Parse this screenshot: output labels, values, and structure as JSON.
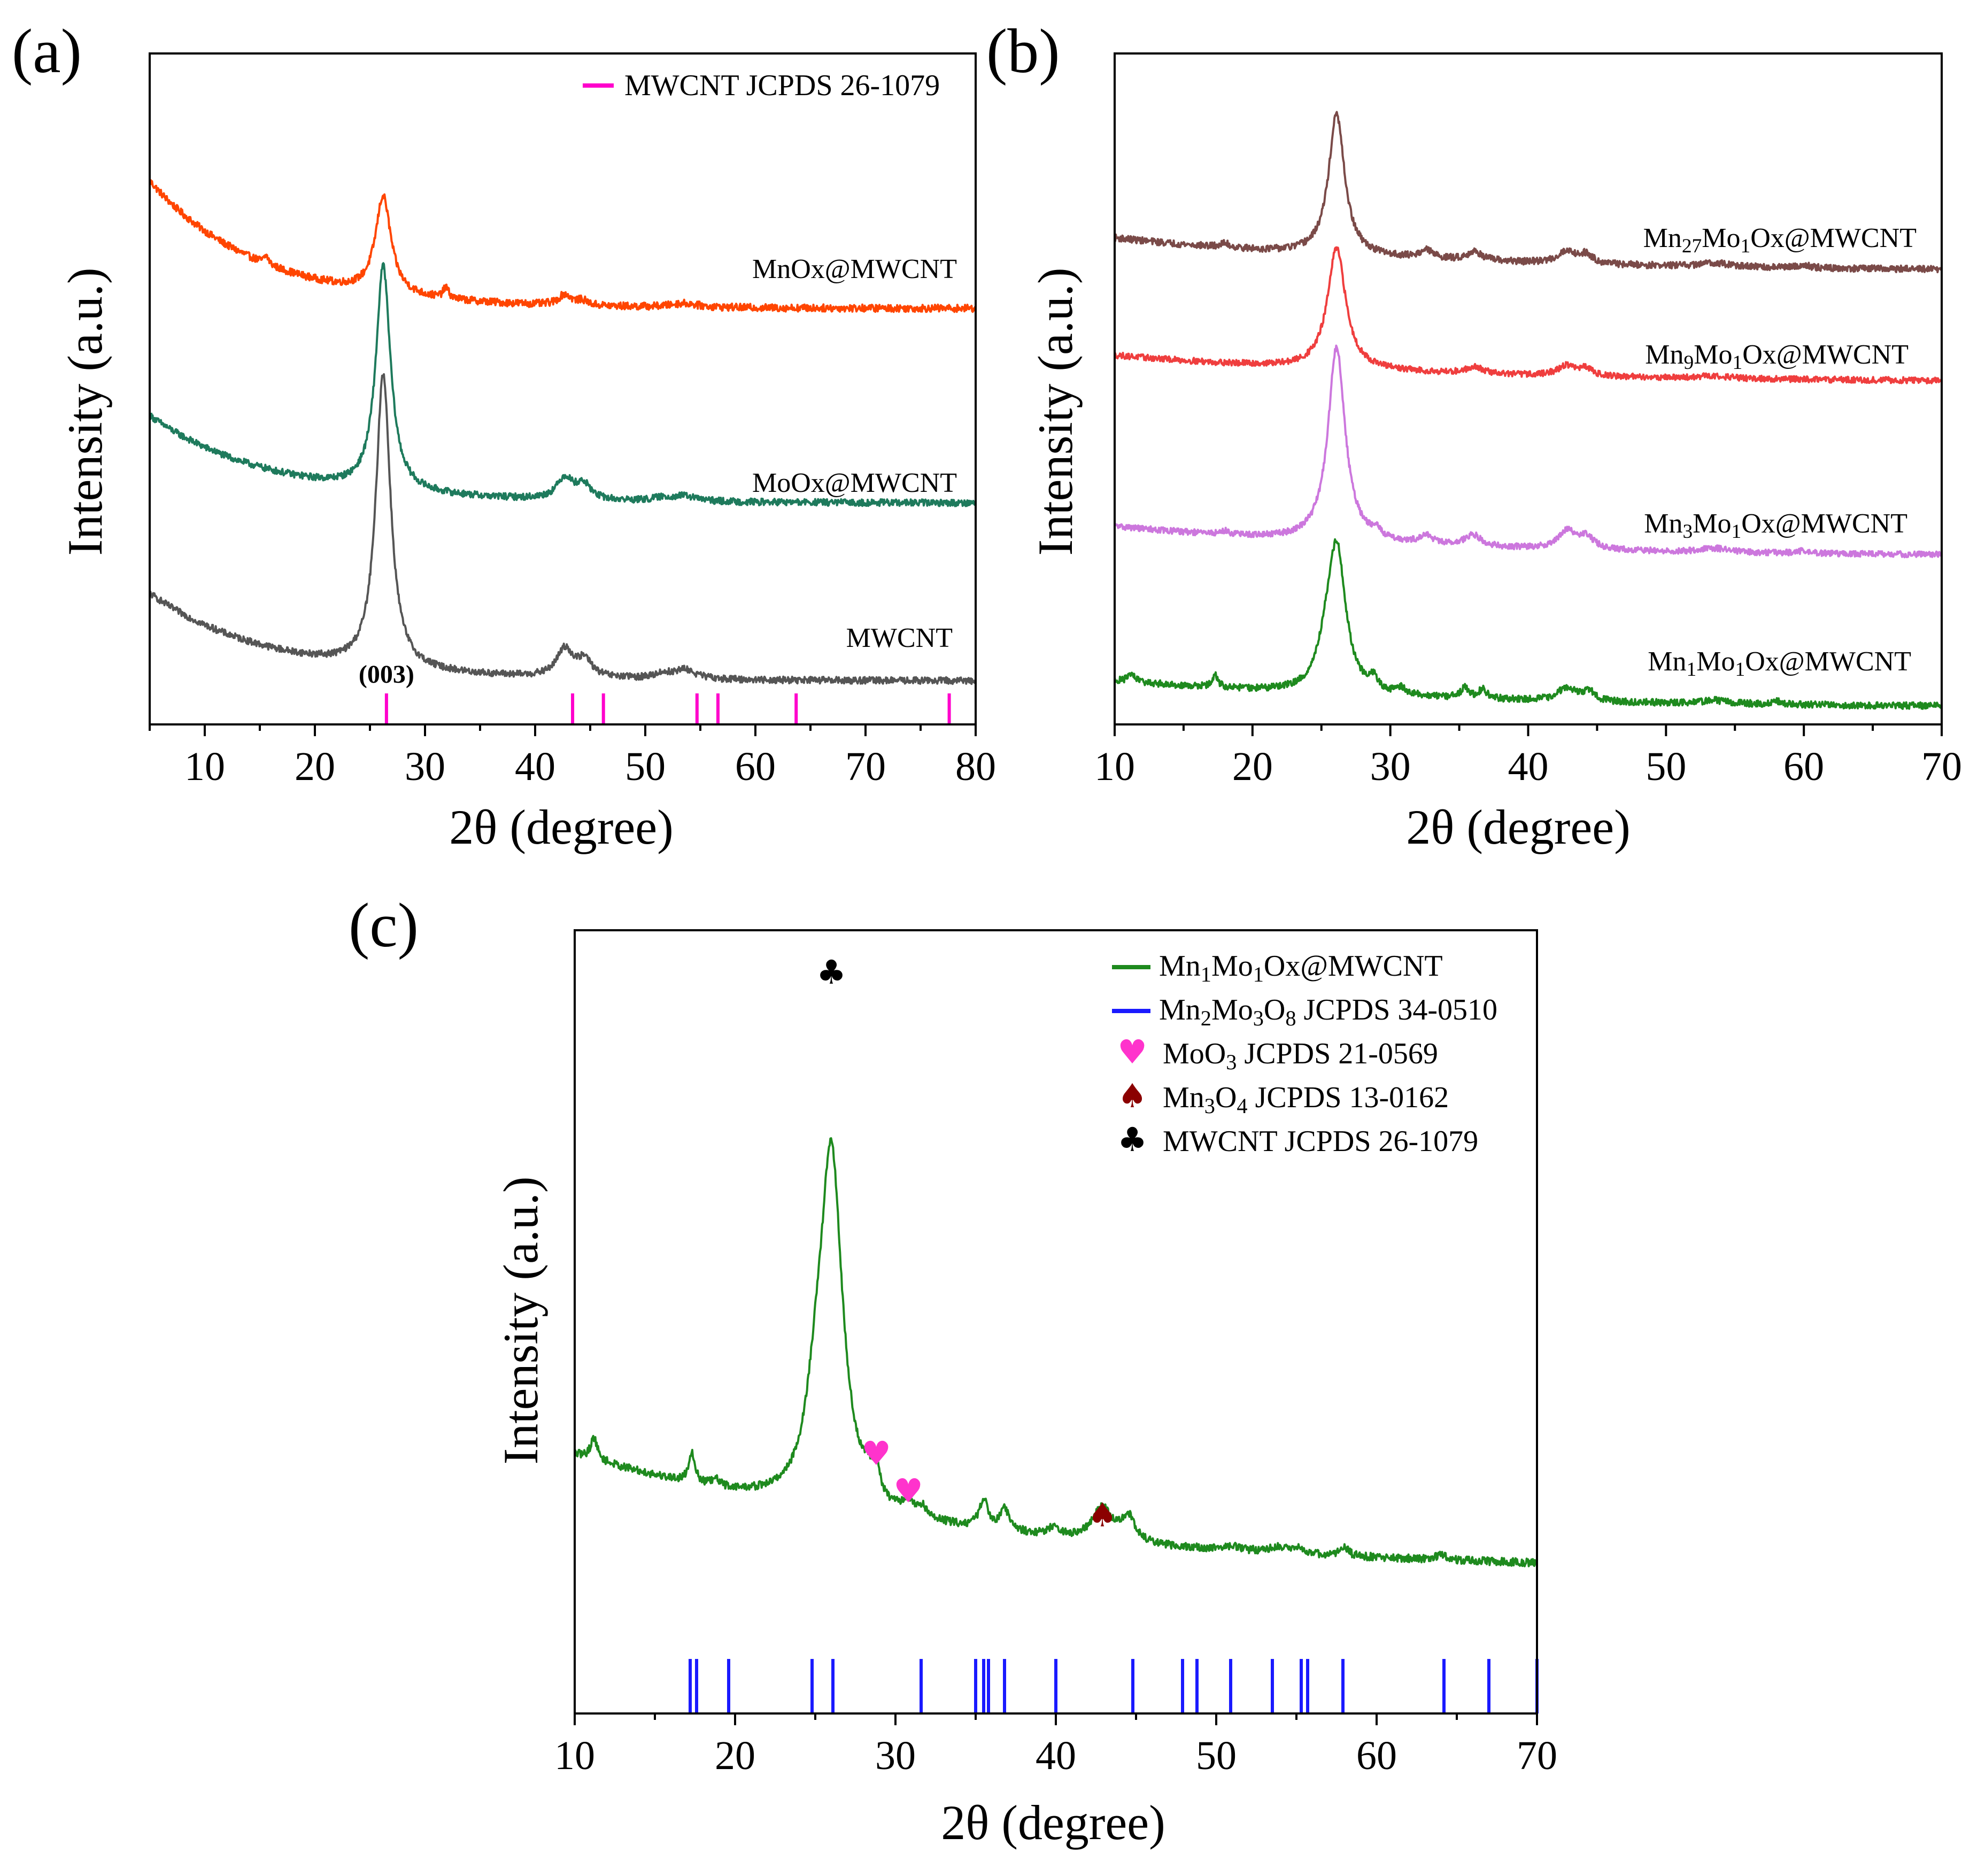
{
  "colors": {
    "mnox": "#ff4500",
    "moox": "#1e7a5c",
    "mwcnt": "#555555",
    "mn27": "#7a4a48",
    "mn9": "#ef3e3e",
    "mn3": "#cc77dd",
    "mn1": "#1e8a1e",
    "ref_mwcnt": "#ff00cc",
    "ref_mn2mo3o8": "#1a1aff",
    "moo3": "#ff33cc",
    "mn3o4": "#8b0000",
    "club": "#000000"
  },
  "symbols": {
    "heart": "♥",
    "spade": "♠",
    "club": "♣"
  },
  "chart_data": [
    {
      "id": "a",
      "type": "line",
      "panel_label": "(a)",
      "xlabel": "2θ (degree)",
      "ylabel": "Intensity (a.u.)",
      "xlim": [
        5,
        80
      ],
      "ylim": [
        0,
        100
      ],
      "xticks": [
        10,
        20,
        30,
        40,
        50,
        60,
        70,
        80
      ],
      "series": [
        {
          "name": "MnOx@MWCNT",
          "label": "MnOx@MWCNT",
          "color": "#ff4500",
          "offset": 62,
          "base_start": 19,
          "base_end": 0,
          "base_decay": 10,
          "noise": 0.55,
          "peaks": [
            [
              26.2,
              14.5,
              0.85
            ],
            [
              15.6,
              1.2,
              0.25
            ],
            [
              31.9,
              1.6,
              0.3
            ],
            [
              42.7,
              1.6,
              0.7
            ],
            [
              44.3,
              0.7,
              0.6
            ],
            [
              53.5,
              0.6,
              1.5
            ]
          ]
        },
        {
          "name": "MoOx@MWCNT",
          "label": "MoOx@MWCNT",
          "color": "#1e7a5c",
          "offset": 33,
          "base_start": 13,
          "base_end": 0,
          "base_decay": 11,
          "noise": 0.5,
          "peaks": [
            [
              26.2,
              33.5,
              0.8
            ],
            [
              42.7,
              3.2,
              0.9
            ],
            [
              44.4,
              2.2,
              0.8
            ],
            [
              53.5,
              0.8,
              1.5
            ],
            [
              51.5,
              0.4,
              1.0
            ]
          ]
        },
        {
          "name": "MWCNT",
          "label": "MWCNT",
          "color": "#555555",
          "offset": 6.5,
          "base_start": 13,
          "base_end": 0,
          "base_decay": 11,
          "noise": 0.5,
          "peaks": [
            [
              26.2,
              44,
              0.8
            ],
            [
              42.7,
              4.2,
              0.9
            ],
            [
              44.5,
              2.5,
              0.8
            ],
            [
              53.6,
              1.4,
              1.2
            ],
            [
              51.6,
              0.7,
              1.0
            ]
          ]
        }
      ],
      "reference": {
        "name": "MWCNT JCPDS 26-1079",
        "color": "#ff00cc",
        "positions": [
          26.5,
          43.4,
          46.2,
          54.7,
          56.6,
          63.7,
          77.6
        ],
        "hkl_label": "(003)",
        "hkl_position": 26.5
      }
    },
    {
      "id": "b",
      "type": "line",
      "panel_label": "(b)",
      "xlabel": "2θ (degree)",
      "ylabel": "Intensity (a.u.)",
      "xlim": [
        10,
        70
      ],
      "ylim": [
        0,
        100
      ],
      "xticks": [
        10,
        20,
        30,
        40,
        50,
        60,
        70
      ],
      "series": [
        {
          "name": "Mn27Mo1Ox@MWCNT",
          "label_parts": [
            [
              "Mn",
              0
            ],
            [
              "27",
              1
            ],
            [
              "Mo",
              0
            ],
            [
              "1",
              1
            ],
            [
              "Ox@MWCNT",
              0
            ]
          ],
          "color": "#7a4a48",
          "offset": 67.5,
          "base_start": 5,
          "base_end": 0,
          "base_decay": 22,
          "noise": 0.5,
          "peaks": [
            [
              26.1,
              21,
              0.7
            ],
            [
              18,
              0.6,
              0.4
            ],
            [
              32.6,
              1.2,
              0.6
            ],
            [
              36.1,
              1.3,
              0.7
            ],
            [
              42.8,
              1.8,
              0.8
            ],
            [
              44.2,
              1.3,
              0.6
            ],
            [
              53.5,
              0.6,
              1.2
            ],
            [
              60,
              0.4,
              0.6
            ]
          ]
        },
        {
          "name": "Mn9Mo1Ox@MWCNT",
          "label_parts": [
            [
              "Mn",
              0
            ],
            [
              "9",
              1
            ],
            [
              "Mo",
              0
            ],
            [
              "1",
              1
            ],
            [
              "Ox@MWCNT",
              0
            ]
          ],
          "color": "#ef3e3e",
          "offset": 51,
          "base_start": 4,
          "base_end": 0,
          "base_decay": 22,
          "noise": 0.45,
          "peaks": [
            [
              26.1,
              18,
              0.8
            ],
            [
              36.1,
              1.0,
              0.7
            ],
            [
              42.8,
              1.5,
              0.8
            ],
            [
              44.2,
              1.0,
              0.6
            ],
            [
              53.5,
              0.4,
              1.2
            ]
          ]
        },
        {
          "name": "Mn3Mo1Ox@MWCNT",
          "label_parts": [
            [
              "Mn",
              0
            ],
            [
              "3",
              1
            ],
            [
              "Mo",
              0
            ],
            [
              "1",
              1
            ],
            [
              "Ox@MWCNT",
              0
            ]
          ],
          "color": "#cc77dd",
          "offset": 25,
          "base_start": 4.5,
          "base_end": 0,
          "base_decay": 22,
          "noise": 0.45,
          "peaks": [
            [
              26.1,
              29,
              0.75
            ],
            [
              18,
              0.5,
              0.4
            ],
            [
              29,
              1.0,
              0.4
            ],
            [
              32.6,
              1.2,
              0.6
            ],
            [
              36.0,
              1.7,
              0.7
            ],
            [
              42.8,
              2.6,
              0.8
            ],
            [
              44.2,
              1.8,
              0.7
            ],
            [
              53.5,
              0.6,
              1.2
            ],
            [
              60,
              0.4,
              0.6
            ]
          ]
        },
        {
          "name": "Mn1Mo1Ox@MWCNT",
          "label_parts": [
            [
              "Mn",
              0
            ],
            [
              "1",
              1
            ],
            [
              "Mo",
              0
            ],
            [
              "1",
              1
            ],
            [
              "Ox@MWCNT",
              0
            ]
          ],
          "color": "#1e8a1e",
          "offset": 2.5,
          "base_start": 4,
          "base_end": 0,
          "base_decay": 22,
          "noise": 0.5,
          "peaks": [
            [
              26.1,
              22,
              0.8
            ],
            [
              25.2,
              3,
              0.6
            ],
            [
              11.2,
              1.2,
              0.3
            ],
            [
              17.3,
              1.8,
              0.25
            ],
            [
              28.8,
              1.8,
              0.3
            ],
            [
              30.8,
              0.9,
              0.4
            ],
            [
              35.4,
              1.5,
              0.35
            ],
            [
              36.7,
              1.4,
              0.35
            ],
            [
              42.8,
              2.0,
              0.8
            ],
            [
              44.4,
              1.5,
              0.5
            ],
            [
              58,
              0.5,
              0.4
            ],
            [
              53.5,
              0.5,
              1.2
            ]
          ]
        }
      ]
    },
    {
      "id": "c",
      "type": "line",
      "panel_label": "(c)",
      "xlabel": "2θ (degree)",
      "ylabel": "Intensity (a.u.)",
      "xlim": [
        10,
        70
      ],
      "ylim": [
        0,
        100
      ],
      "xticks": [
        10,
        20,
        30,
        40,
        50,
        60,
        70
      ],
      "series": [
        {
          "name": "Mn1Mo1Ox@MWCNT",
          "color": "#1e8a1e",
          "offset": 18,
          "base_start": 15,
          "base_end": 0,
          "base_decay": 24,
          "noise": 0.5,
          "peaks": [
            [
              26.0,
              45,
              0.85
            ],
            [
              25.0,
              7,
              0.7
            ],
            [
              11.2,
              2.8,
              0.25
            ],
            [
              17.3,
              4.0,
              0.22
            ],
            [
              18.8,
              0.8,
              0.3
            ],
            [
              28.3,
              2.0,
              0.3
            ],
            [
              28.8,
              3.5,
              0.25
            ],
            [
              30.8,
              1.8,
              0.4
            ],
            [
              31.7,
              1.2,
              0.3
            ],
            [
              35.5,
              3.5,
              0.35
            ],
            [
              36.8,
              2.8,
              0.35
            ],
            [
              39.8,
              1.0,
              0.5
            ],
            [
              42.9,
              4.2,
              0.75
            ],
            [
              44.5,
              3.2,
              0.5
            ],
            [
              51.0,
              0.6,
              0.5
            ],
            [
              53.8,
              0.7,
              0.8
            ],
            [
              55.2,
              0.8,
              0.4
            ],
            [
              58.0,
              1.0,
              0.35
            ],
            [
              64.0,
              0.6,
              0.4
            ]
          ]
        }
      ],
      "reference": {
        "name": "Mn2Mo3O8 JCPDS 34-0510",
        "color": "#1a1aff",
        "positions": [
          17.2,
          17.6,
          19.6,
          24.8,
          26.1,
          31.6,
          35.0,
          35.5,
          35.8,
          36.8,
          40.0,
          44.8,
          47.9,
          48.8,
          50.9,
          53.5,
          55.3,
          55.7,
          57.9,
          64.2,
          67.0,
          70.0
        ]
      },
      "markers": [
        {
          "symbol": "club",
          "x": 26.0,
          "color": "#000000"
        },
        {
          "symbol": "heart",
          "x": 28.8,
          "color": "#ff33cc"
        },
        {
          "symbol": "heart",
          "x": 30.8,
          "color": "#ff33cc"
        },
        {
          "symbol": "spade",
          "x": 42.9,
          "color": "#8b0000"
        }
      ],
      "legend": [
        {
          "kind": "line",
          "color": "#1e8a1e",
          "parts": [
            [
              "Mn",
              0
            ],
            [
              "1",
              1
            ],
            [
              "Mo",
              0
            ],
            [
              "1",
              1
            ],
            [
              "Ox@MWCNT",
              0
            ]
          ]
        },
        {
          "kind": "line",
          "color": "#1a1aff",
          "parts": [
            [
              "Mn",
              0
            ],
            [
              "2",
              1
            ],
            [
              "Mo",
              0
            ],
            [
              "3",
              1
            ],
            [
              "O",
              0
            ],
            [
              "8",
              1
            ],
            [
              "  JCPDS 34-0510",
              0
            ]
          ]
        },
        {
          "kind": "symbol",
          "symbol": "heart",
          "color": "#ff33cc",
          "parts": [
            [
              "MoO",
              0
            ],
            [
              "3",
              1
            ],
            [
              "  JCPDS 21-0569",
              0
            ]
          ]
        },
        {
          "kind": "symbol",
          "symbol": "spade",
          "color": "#8b0000",
          "parts": [
            [
              "Mn",
              0
            ],
            [
              "3",
              1
            ],
            [
              "O",
              0
            ],
            [
              "4",
              1
            ],
            [
              "  JCPDS 13-0162",
              0
            ]
          ]
        },
        {
          "kind": "symbol",
          "symbol": "club",
          "color": "#000000",
          "parts": [
            [
              "MWCNT JCPDS 26-1079",
              0
            ]
          ]
        }
      ]
    }
  ]
}
